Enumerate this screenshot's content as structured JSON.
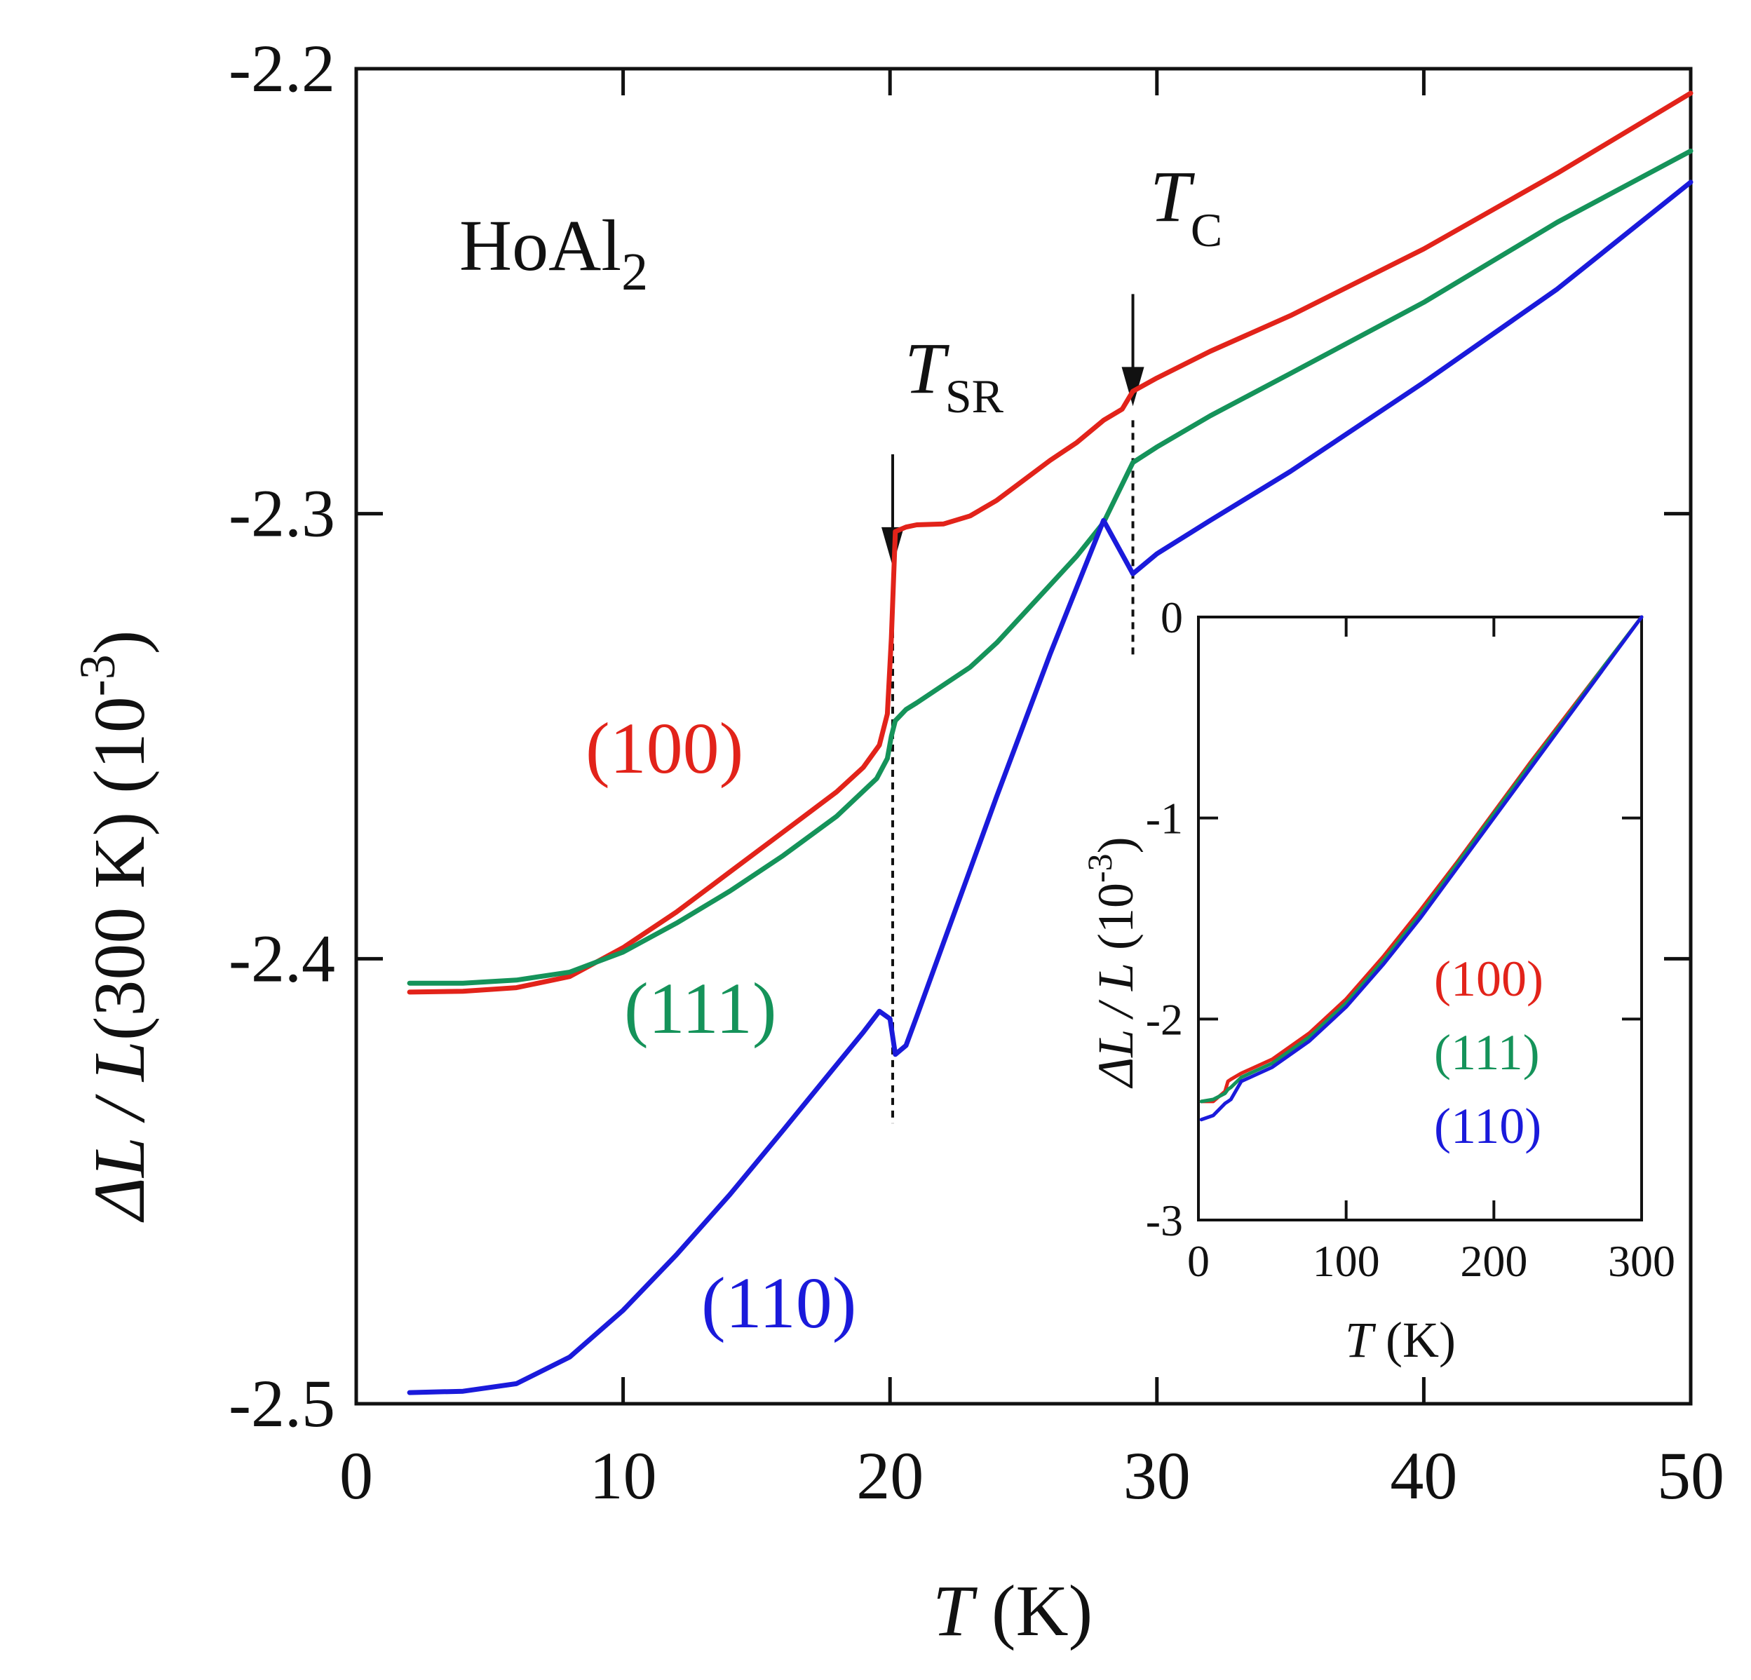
{
  "chart_data": [
    {
      "type": "line",
      "title": "",
      "compound": "HoAl",
      "compound_subscript": "2",
      "xlabel": {
        "symbol": "T",
        "unit": " (K)"
      },
      "ylabel": {
        "main": "ΔL / L",
        "rest": "(300 K)  (10",
        "exponent": "-3",
        "close": ")"
      },
      "xlim": [
        0,
        50
      ],
      "ylim": [
        -2.5,
        -2.2
      ],
      "xticks": [
        0,
        10,
        20,
        30,
        40,
        50
      ],
      "yticks": [
        -2.5,
        -2.4,
        -2.3,
        -2.2
      ],
      "xtick_labels": [
        "0",
        "10",
        "20",
        "30",
        "40",
        "50"
      ],
      "ytick_labels": [
        "-2.5",
        "-2.4",
        "-2.3",
        "-2.2"
      ],
      "annotations": [
        {
          "symbol": "T",
          "subscript": "SR",
          "x": 20.1,
          "y_from": -2.315,
          "y_to": -2.437
        },
        {
          "symbol": "T",
          "subscript": "C",
          "x": 29.1,
          "y_from": -2.279,
          "y_to": -2.332
        }
      ],
      "series": [
        {
          "name": "(100)",
          "color": "#e2231a",
          "x": [
            2,
            4,
            6,
            8,
            10,
            12,
            14,
            16,
            18,
            19,
            19.6,
            19.9,
            20.05,
            20.2,
            20.6,
            21,
            22,
            23,
            24,
            25,
            26,
            27,
            28,
            28.7,
            29.1,
            30,
            32,
            35,
            40,
            45,
            50
          ],
          "y": [
            -2.4075,
            -2.4073,
            -2.4065,
            -2.404,
            -2.3975,
            -2.3895,
            -2.3805,
            -2.3715,
            -2.3625,
            -2.357,
            -2.352,
            -2.345,
            -2.328,
            -2.304,
            -2.303,
            -2.3025,
            -2.3023,
            -2.3005,
            -2.297,
            -2.2925,
            -2.288,
            -2.284,
            -2.279,
            -2.2765,
            -2.2725,
            -2.2695,
            -2.2635,
            -2.2555,
            -2.2405,
            -2.2235,
            -2.2055
          ]
        },
        {
          "name": "(111)",
          "color": "#15935a",
          "x": [
            2,
            4,
            6,
            8,
            10,
            12,
            14,
            16,
            18,
            19.5,
            19.9,
            20.05,
            20.2,
            20.6,
            21,
            22,
            23,
            24,
            25,
            26,
            27,
            28,
            29.1,
            30,
            32,
            35,
            40,
            45,
            50
          ],
          "y": [
            -2.4055,
            -2.4055,
            -2.4048,
            -2.403,
            -2.3985,
            -2.392,
            -2.3848,
            -2.3768,
            -2.368,
            -2.3595,
            -2.355,
            -2.35,
            -2.3465,
            -2.344,
            -2.3425,
            -2.3385,
            -2.3345,
            -2.329,
            -2.3225,
            -2.316,
            -2.3095,
            -2.302,
            -2.2885,
            -2.285,
            -2.278,
            -2.2685,
            -2.2525,
            -2.2345,
            -2.2185
          ]
        },
        {
          "name": "(110)",
          "color": "#1a1adb",
          "x": [
            2,
            4,
            6,
            8,
            10,
            12,
            14,
            16,
            18,
            19,
            19.6,
            20,
            20.2,
            20.6,
            21,
            22,
            23,
            24,
            25,
            26,
            27,
            28,
            29.1,
            30,
            32,
            35,
            40,
            45,
            50
          ],
          "y": [
            -2.4975,
            -2.4972,
            -2.4955,
            -2.4895,
            -2.479,
            -2.4665,
            -2.453,
            -2.4385,
            -2.4238,
            -2.4165,
            -2.4118,
            -2.4135,
            -2.4215,
            -2.4195,
            -2.413,
            -2.3965,
            -2.38,
            -2.3635,
            -2.3475,
            -2.3315,
            -2.3165,
            -2.3015,
            -2.3135,
            -2.309,
            -2.3015,
            -2.2905,
            -2.2705,
            -2.2495,
            -2.2255
          ]
        }
      ]
    },
    {
      "type": "line",
      "title": "inset",
      "xlabel": {
        "symbol": "T",
        "unit": " (K)"
      },
      "ylabel": {
        "main": "ΔL / L",
        "rest": " (10",
        "exponent": "-3",
        "close": ")"
      },
      "xlim": [
        0,
        300
      ],
      "ylim": [
        -3,
        0
      ],
      "xticks": [
        0,
        100,
        200,
        300
      ],
      "yticks": [
        -3,
        -2,
        -1,
        0
      ],
      "xtick_labels": [
        "0",
        "100",
        "200",
        "300"
      ],
      "ytick_labels": [
        "-3",
        "-2",
        "-1",
        "0"
      ],
      "series": [
        {
          "name": "(100)",
          "color": "#e2231a",
          "x": [
            2,
            10,
            18,
            20,
            22,
            29,
            35,
            50,
            75,
            100,
            125,
            150,
            175,
            200,
            225,
            250,
            275,
            300
          ],
          "y": [
            -2.41,
            -2.41,
            -2.36,
            -2.31,
            -2.3,
            -2.27,
            -2.25,
            -2.2,
            -2.07,
            -1.9,
            -1.69,
            -1.46,
            -1.22,
            -0.97,
            -0.72,
            -0.48,
            -0.24,
            0
          ]
        },
        {
          "name": "(111)",
          "color": "#15935a",
          "x": [
            2,
            10,
            18,
            20,
            22,
            29,
            35,
            50,
            75,
            100,
            125,
            150,
            175,
            200,
            225,
            250,
            275,
            300
          ],
          "y": [
            -2.41,
            -2.4,
            -2.37,
            -2.35,
            -2.34,
            -2.29,
            -2.27,
            -2.22,
            -2.09,
            -1.92,
            -1.71,
            -1.48,
            -1.23,
            -0.98,
            -0.73,
            -0.49,
            -0.24,
            0
          ]
        },
        {
          "name": "(110)",
          "color": "#1a1adb",
          "x": [
            2,
            10,
            18,
            20,
            22,
            29,
            35,
            50,
            75,
            100,
            125,
            150,
            175,
            200,
            225,
            250,
            275,
            300
          ],
          "y": [
            -2.5,
            -2.48,
            -2.42,
            -2.41,
            -2.4,
            -2.31,
            -2.29,
            -2.24,
            -2.11,
            -1.94,
            -1.73,
            -1.5,
            -1.25,
            -1.0,
            -0.75,
            -0.5,
            -0.25,
            0
          ]
        }
      ]
    }
  ]
}
